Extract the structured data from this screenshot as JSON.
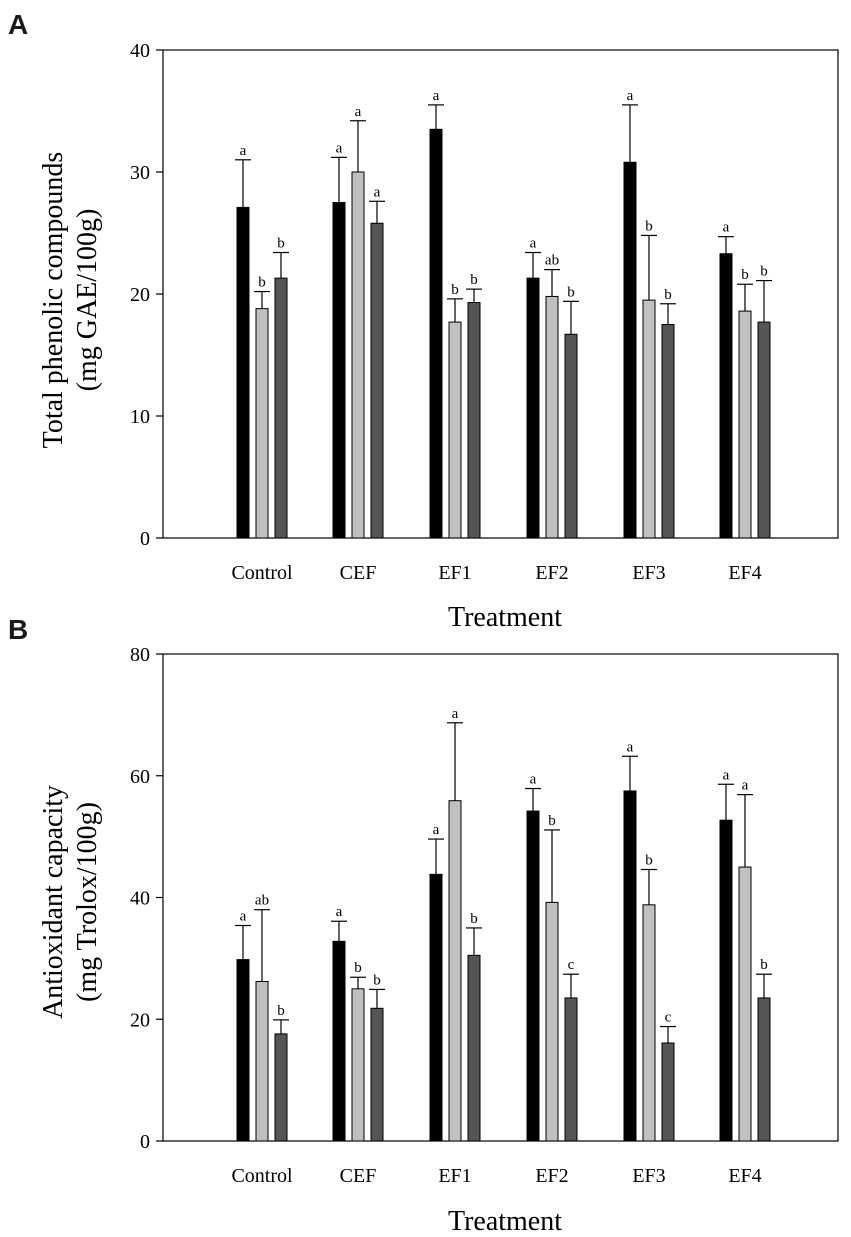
{
  "chart_data": [
    {
      "panel": "A",
      "type": "bar",
      "xlabel": "Treatment",
      "ylabel_line1": "Total phenolic compounds",
      "ylabel_line2": "(mg GAE/100g)",
      "ylim": [
        0,
        40
      ],
      "yticks": [
        0,
        10,
        20,
        30,
        40
      ],
      "categories": [
        "Control",
        "CEF",
        "EF1",
        "EF2",
        "EF3",
        "EF4"
      ],
      "series": [
        {
          "name": "series-1",
          "color": "#000000",
          "values": [
            27.1,
            27.5,
            33.5,
            21.3,
            30.8,
            23.3
          ],
          "errors": [
            3.9,
            3.7,
            2.0,
            2.1,
            4.7,
            1.4
          ],
          "letters": [
            "a",
            "a",
            "a",
            "a",
            "a",
            "a"
          ]
        },
        {
          "name": "series-2",
          "color": "#c0c0c0",
          "values": [
            18.8,
            30.0,
            17.7,
            19.8,
            19.5,
            18.6
          ],
          "errors": [
            1.4,
            4.2,
            1.9,
            2.2,
            5.3,
            2.2
          ],
          "letters": [
            "b",
            "a",
            "b",
            "ab",
            "b",
            "b"
          ]
        },
        {
          "name": "series-3",
          "color": "#555555",
          "values": [
            21.3,
            25.8,
            19.3,
            16.7,
            17.5,
            17.7
          ],
          "errors": [
            2.1,
            1.8,
            1.1,
            2.7,
            1.7,
            3.4
          ],
          "letters": [
            "b",
            "a",
            "b",
            "b",
            "b",
            "b"
          ]
        }
      ]
    },
    {
      "panel": "B",
      "type": "bar",
      "xlabel": "Treatment",
      "ylabel_line1": "Antioxidant capacity",
      "ylabel_line2": "(mg Trolox/100g)",
      "ylim": [
        0,
        80
      ],
      "yticks": [
        0,
        20,
        40,
        60,
        80
      ],
      "categories": [
        "Control",
        "CEF",
        "EF1",
        "EF2",
        "EF3",
        "EF4"
      ],
      "series": [
        {
          "name": "series-1",
          "color": "#000000",
          "values": [
            29.8,
            32.8,
            43.8,
            54.2,
            57.5,
            52.7
          ],
          "errors": [
            5.6,
            3.3,
            5.8,
            3.7,
            5.7,
            5.9
          ],
          "letters": [
            "a",
            "a",
            "a",
            "a",
            "a",
            "a"
          ]
        },
        {
          "name": "series-2",
          "color": "#c0c0c0",
          "values": [
            26.2,
            25.0,
            55.9,
            39.2,
            38.8,
            45.0
          ],
          "errors": [
            11.8,
            1.9,
            12.8,
            11.9,
            5.8,
            11.9
          ],
          "letters": [
            "ab",
            "b",
            "a",
            "b",
            "b",
            "a"
          ]
        },
        {
          "name": "series-3",
          "color": "#555555",
          "values": [
            17.6,
            21.8,
            30.5,
            23.5,
            16.1,
            23.5
          ],
          "errors": [
            2.3,
            3.1,
            4.5,
            3.9,
            2.7,
            3.9
          ],
          "letters": [
            "b",
            "b",
            "b",
            "c",
            "c",
            "b"
          ]
        }
      ]
    }
  ]
}
